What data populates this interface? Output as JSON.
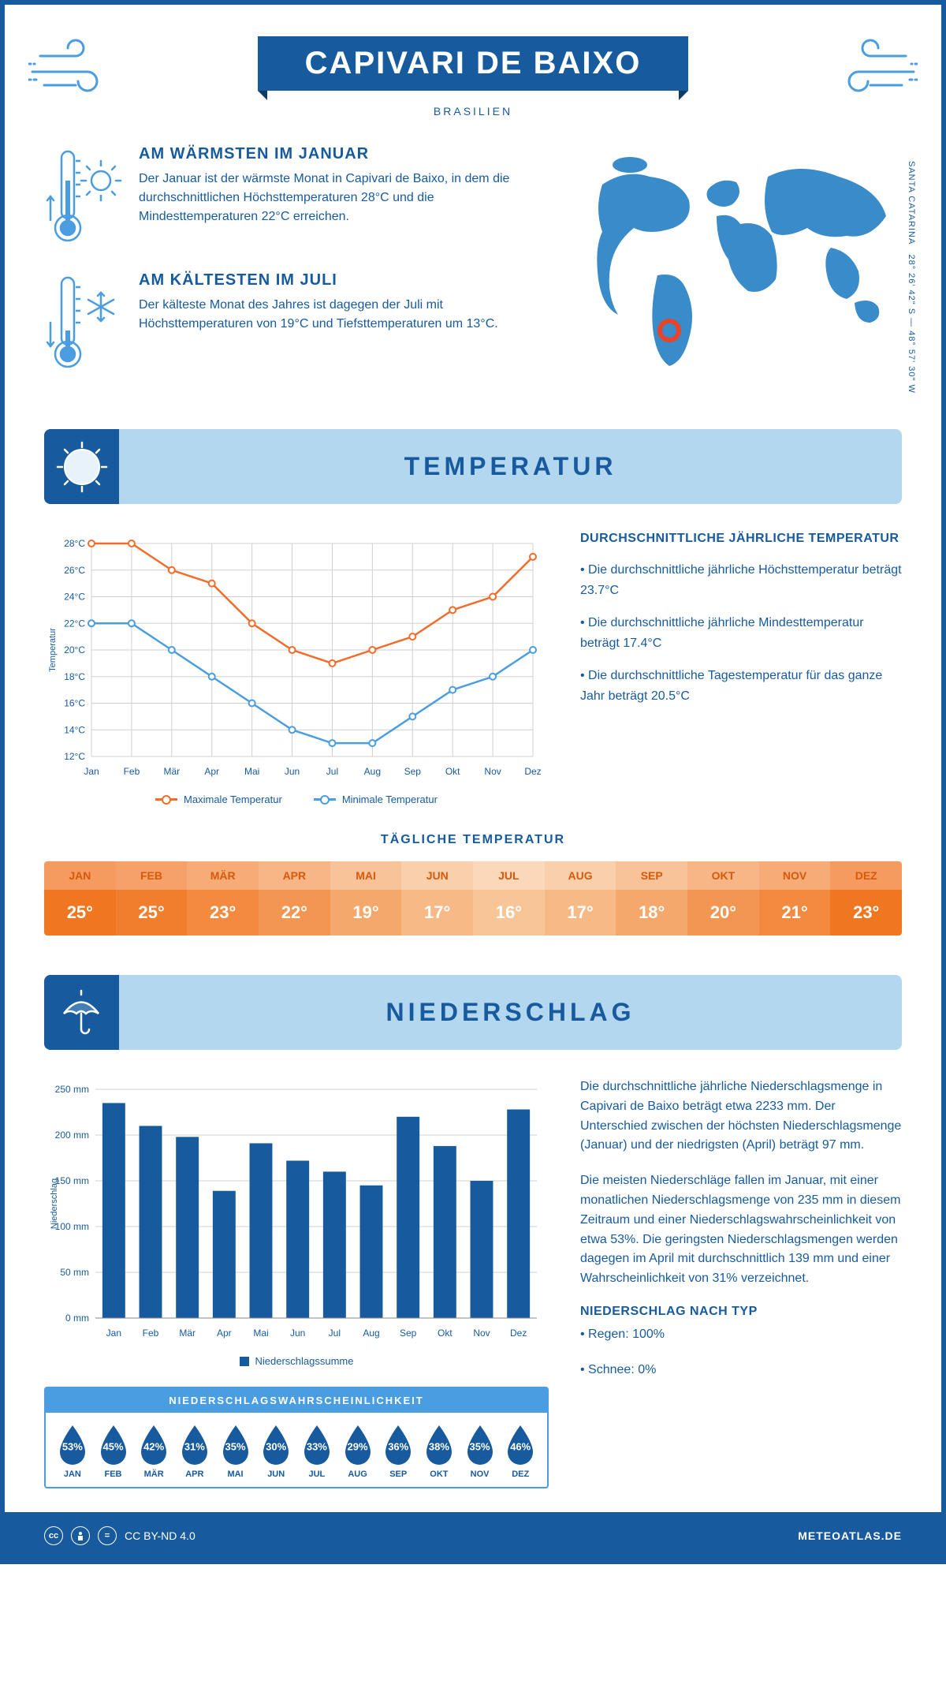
{
  "header": {
    "title": "CAPIVARI DE BAIXO",
    "country": "BRASILIEN",
    "coords_line1": "28° 26' 42\" S — 48° 57' 30\" W",
    "coords_line2": "SANTA CATARINA"
  },
  "intro": {
    "warm": {
      "title": "AM WÄRMSTEN IM JANUAR",
      "text": "Der Januar ist der wärmste Monat in Capivari de Baixo, in dem die durchschnittlichen Höchsttemperaturen 28°C und die Mindesttemperaturen 22°C erreichen."
    },
    "cold": {
      "title": "AM KÄLTESTEN IM JULI",
      "text": "Der kälteste Monat des Jahres ist dagegen der Juli mit Höchsttemperaturen von 19°C und Tiefsttemperaturen um 13°C."
    }
  },
  "temp_section": {
    "heading": "TEMPERATUR",
    "chart": {
      "type": "line",
      "months": [
        "Jan",
        "Feb",
        "Mär",
        "Apr",
        "Mai",
        "Jun",
        "Jul",
        "Aug",
        "Sep",
        "Okt",
        "Nov",
        "Dez"
      ],
      "max_values": [
        28,
        28,
        26,
        25,
        22,
        20,
        19,
        20,
        21,
        23,
        24,
        27
      ],
      "min_values": [
        22,
        22,
        20,
        18,
        16,
        14,
        13,
        13,
        15,
        17,
        18,
        20
      ],
      "y_label": "Temperatur",
      "y_ticks": [
        12,
        14,
        16,
        18,
        20,
        22,
        24,
        26,
        28
      ],
      "y_suffix": "°C",
      "ylim": [
        12,
        28
      ],
      "max_color": "#f26c2a",
      "min_color": "#4a9de0",
      "grid_color": "#d0d0d0",
      "legend_max": "Maximale Temperatur",
      "legend_min": "Minimale Temperatur"
    },
    "facts": {
      "heading": "DURCHSCHNITTLICHE JÄHRLICHE TEMPERATUR",
      "lines": [
        "• Die durchschnittliche jährliche Höchsttemperatur beträgt 23.7°C",
        "• Die durchschnittliche jährliche Mindesttemperatur beträgt 17.4°C",
        "• Die durchschnittliche Tagestemperatur für das ganze Jahr beträgt 20.5°C"
      ]
    },
    "daily": {
      "heading": "TÄGLICHE TEMPERATUR",
      "months": [
        "JAN",
        "FEB",
        "MÄR",
        "APR",
        "MAI",
        "JUN",
        "JUL",
        "AUG",
        "SEP",
        "OKT",
        "NOV",
        "DEZ"
      ],
      "values": [
        "25°",
        "25°",
        "23°",
        "22°",
        "19°",
        "17°",
        "16°",
        "17°",
        "18°",
        "20°",
        "21°",
        "23°"
      ],
      "month_bg": [
        "#f59b5f",
        "#f6a169",
        "#f7ab77",
        "#f8b585",
        "#f9c399",
        "#fad0ac",
        "#fbd8b9",
        "#fad0ac",
        "#f9c399",
        "#f8b585",
        "#f7ab77",
        "#f59b5f"
      ],
      "val_bg": [
        "#ef7722",
        "#f07e2d",
        "#f28a3f",
        "#f39651",
        "#f5a86b",
        "#f7b985",
        "#f8c596",
        "#f7b985",
        "#f5a86b",
        "#f39651",
        "#f28a3f",
        "#ef7722"
      ],
      "month_fg": "#d9590a"
    }
  },
  "precip_section": {
    "heading": "NIEDERSCHLAG",
    "chart": {
      "type": "bar",
      "months": [
        "Jan",
        "Feb",
        "Mär",
        "Apr",
        "Mai",
        "Jun",
        "Jul",
        "Aug",
        "Sep",
        "Okt",
        "Nov",
        "Dez"
      ],
      "values": [
        235,
        210,
        198,
        139,
        191,
        172,
        160,
        145,
        220,
        188,
        150,
        228
      ],
      "y_label": "Niederschlag",
      "y_ticks": [
        0,
        50,
        100,
        150,
        200,
        250
      ],
      "y_suffix": " mm",
      "ylim": [
        0,
        250
      ],
      "bar_color": "#175a9e",
      "legend": "Niederschlagssumme"
    },
    "text": {
      "p1": "Die durchschnittliche jährliche Niederschlagsmenge in Capivari de Baixo beträgt etwa 2233 mm. Der Unterschied zwischen der höchsten Niederschlagsmenge (Januar) und der niedrigsten (April) beträgt 97 mm.",
      "p2": "Die meisten Niederschläge fallen im Januar, mit einer monatlichen Niederschlagsmenge von 235 mm in diesem Zeitraum und einer Niederschlagswahrscheinlichkeit von etwa 53%. Die geringsten Niederschlagsmengen werden dagegen im April mit durchschnittlich 139 mm und einer Wahrscheinlichkeit von 31% verzeichnet.",
      "type_heading": "NIEDERSCHLAG NACH TYP",
      "type_lines": [
        "• Regen: 100%",
        "• Schnee: 0%"
      ]
    },
    "probability": {
      "heading": "NIEDERSCHLAGSWAHRSCHEINLICHKEIT",
      "months": [
        "JAN",
        "FEB",
        "MÄR",
        "APR",
        "MAI",
        "JUN",
        "JUL",
        "AUG",
        "SEP",
        "OKT",
        "NOV",
        "DEZ"
      ],
      "values": [
        "53%",
        "45%",
        "42%",
        "31%",
        "35%",
        "30%",
        "33%",
        "29%",
        "36%",
        "38%",
        "35%",
        "46%"
      ],
      "drop_color": "#175a9e"
    }
  },
  "footer": {
    "license": "CC BY-ND 4.0",
    "site": "METEOATLAS.DE"
  },
  "colors": {
    "primary": "#175a9e",
    "light_blue": "#b3d7ef",
    "accent_blue": "#4a9de0"
  }
}
